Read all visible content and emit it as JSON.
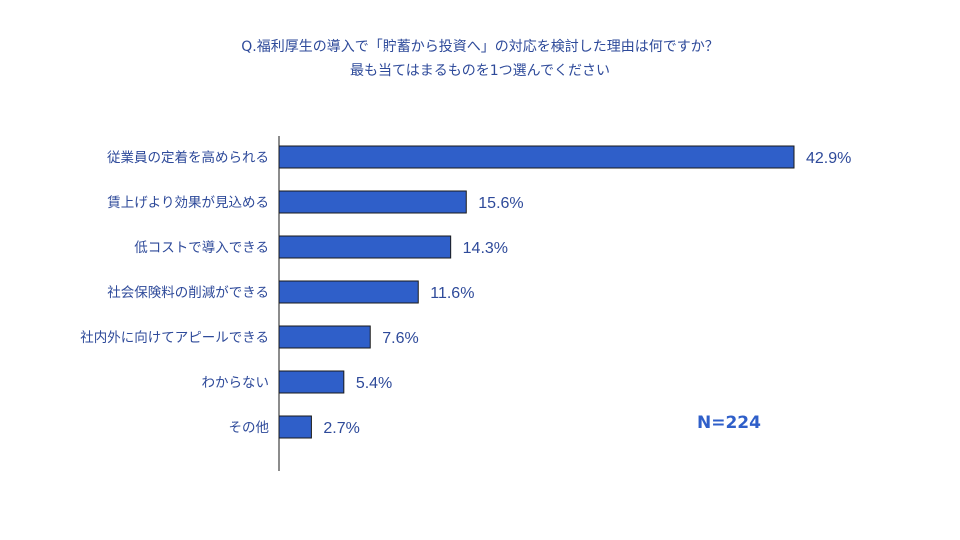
{
  "chart_data": {
    "type": "bar",
    "orientation": "horizontal",
    "title": "Q.福利厚生の導入で「貯蓄から投資へ」の対応を検討した理由は何ですか？",
    "subtitle": "最も当てはまるものを1つ選んでください",
    "categories": [
      "従業員の定着を高められる",
      "賃上げより効果が見込める",
      "低コストで導入できる",
      "社会保険料の削減ができる",
      "社内外に向けてアピールできる",
      "わからない",
      "その他"
    ],
    "values": [
      42.9,
      15.6,
      14.3,
      11.6,
      7.6,
      5.4,
      2.7
    ],
    "value_labels": [
      "42.9%",
      "15.6%",
      "14.3%",
      "11.6%",
      "7.6%",
      "5.4%",
      "2.7%"
    ],
    "xlim": [
      0,
      50
    ],
    "grid": false,
    "legend": "none",
    "bar_color": "#2f5fc9",
    "bar_border": "#1a1a1a",
    "text_color": "#2e4a9a"
  },
  "annotation": {
    "n_label": "N=224"
  }
}
